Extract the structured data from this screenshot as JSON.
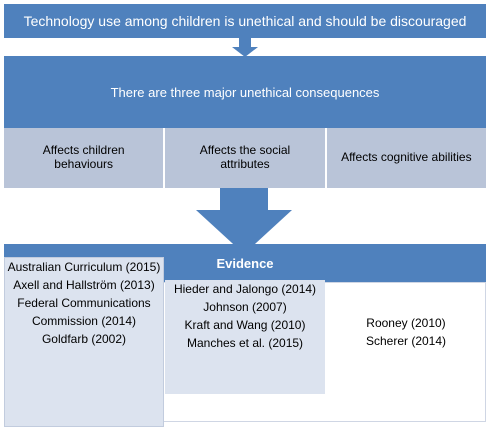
{
  "title": "Technology use among children is unethical and should be discouraged",
  "consequences": {
    "heading": "There are three major unethical consequences",
    "items": [
      {
        "label": "Affects children behaviours"
      },
      {
        "label": "Affects the social attributes"
      },
      {
        "label": "Affects cognitive abilities"
      }
    ]
  },
  "evidence": {
    "heading": "Evidence",
    "columns": [
      [
        "Australian Curriculum (2015)",
        "Axell and Hallström (2013)",
        "Federal Communications Commission (2014)",
        "Goldfarb (2002)"
      ],
      [
        "Hieder and Jalongo (2014)",
        "Johnson (2007)",
        "Kraft and Wang (2010)",
        "Manches et al. (2015)"
      ],
      [
        "Rooney (2010)",
        "Scherer (2014)"
      ]
    ]
  },
  "colors": {
    "primary": "#4f81bd",
    "light": "#b9c4d8",
    "pale": "#dce3ef"
  }
}
